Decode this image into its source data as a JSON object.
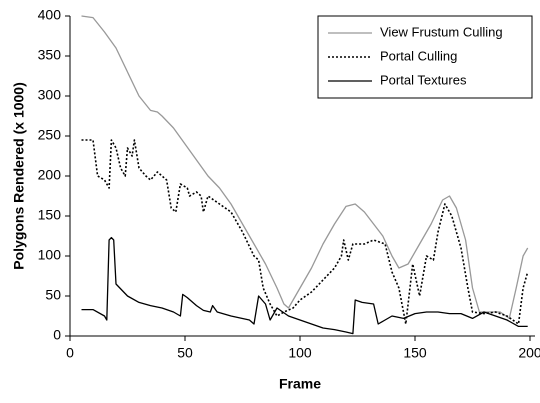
{
  "chart_data": {
    "type": "line",
    "x_label": "Frame",
    "y_label": "Polygons Rendered (x 1000)",
    "xlim": [
      0,
      200
    ],
    "xticks": [
      0,
      50,
      100,
      150,
      200
    ],
    "ylim": [
      0,
      400
    ],
    "yticks": [
      0,
      50,
      100,
      150,
      200,
      250,
      300,
      350,
      400
    ],
    "grid": false,
    "legend_position": "top-right",
    "series": [
      {
        "name": "View Frustum Culling",
        "color": "#999999",
        "style": "solid",
        "x": [
          5,
          10,
          15,
          20,
          25,
          30,
          35,
          38,
          40,
          45,
          50,
          55,
          60,
          65,
          70,
          75,
          80,
          85,
          90,
          93,
          95,
          100,
          105,
          110,
          115,
          120,
          124,
          128,
          132,
          136,
          140,
          143,
          147,
          152,
          157,
          162,
          165,
          168,
          172,
          175,
          178,
          182,
          187,
          191,
          194,
          197,
          199
        ],
        "values": [
          400,
          398,
          380,
          360,
          330,
          300,
          282,
          280,
          275,
          260,
          240,
          220,
          200,
          185,
          165,
          140,
          115,
          90,
          60,
          40,
          35,
          60,
          85,
          115,
          140,
          162,
          165,
          155,
          140,
          125,
          100,
          85,
          90,
          115,
          140,
          170,
          175,
          160,
          120,
          60,
          30,
          30,
          30,
          22,
          60,
          100,
          110
        ]
      },
      {
        "name": "Portal Culling",
        "color": "#000000",
        "style": "dotted",
        "x": [
          5,
          10,
          12,
          15,
          17,
          18,
          20,
          22,
          24,
          25,
          27,
          28,
          30,
          33,
          35,
          38,
          42,
          44,
          46,
          48,
          51,
          52,
          55,
          57,
          58,
          60,
          65,
          70,
          75,
          80,
          82,
          84,
          87,
          90,
          93,
          97,
          100,
          105,
          110,
          115,
          118,
          119,
          121,
          123,
          128,
          132,
          137,
          140,
          143,
          146,
          149,
          152,
          155,
          158,
          160,
          163,
          166,
          170,
          173,
          175,
          180,
          185,
          190,
          195,
          197,
          199
        ],
        "values": [
          245,
          245,
          200,
          195,
          185,
          245,
          235,
          210,
          200,
          235,
          225,
          245,
          210,
          200,
          195,
          205,
          195,
          160,
          155,
          190,
          185,
          175,
          180,
          175,
          155,
          175,
          165,
          155,
          130,
          100,
          95,
          60,
          40,
          25,
          30,
          35,
          45,
          55,
          70,
          85,
          100,
          120,
          95,
          115,
          115,
          120,
          115,
          80,
          60,
          15,
          90,
          50,
          100,
          95,
          130,
          165,
          150,
          110,
          60,
          30,
          28,
          30,
          25,
          15,
          60,
          80
        ]
      },
      {
        "name": "Portal Textures",
        "color": "#000000",
        "style": "solid",
        "x": [
          5,
          10,
          15,
          16,
          17,
          18,
          19,
          20,
          25,
          30,
          35,
          40,
          45,
          48,
          49,
          51,
          55,
          58,
          61,
          62,
          64,
          70,
          78,
          80,
          82,
          85,
          87,
          90,
          95,
          100,
          105,
          110,
          115,
          120,
          123,
          124,
          127,
          132,
          134,
          137,
          140,
          145,
          150,
          155,
          160,
          165,
          170,
          175,
          180,
          185,
          190,
          195,
          199
        ],
        "values": [
          33,
          33,
          25,
          20,
          120,
          123,
          120,
          65,
          50,
          42,
          38,
          35,
          30,
          25,
          52,
          48,
          38,
          32,
          30,
          38,
          30,
          25,
          20,
          15,
          50,
          40,
          20,
          35,
          25,
          20,
          15,
          10,
          8,
          5,
          3,
          45,
          42,
          40,
          15,
          20,
          25,
          22,
          28,
          30,
          30,
          28,
          28,
          22,
          30,
          25,
          20,
          12,
          12
        ]
      }
    ]
  }
}
